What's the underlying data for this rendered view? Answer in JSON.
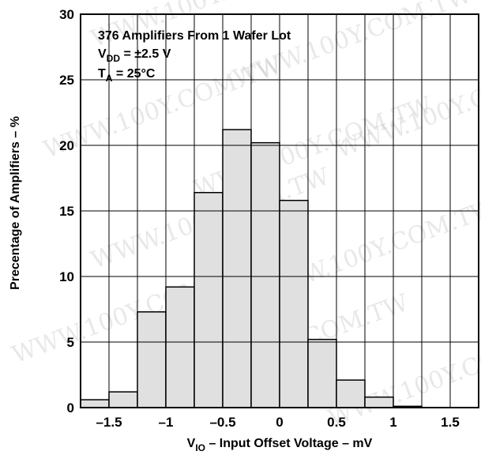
{
  "chart_data": {
    "type": "bar",
    "bin_edges": [
      -1.75,
      -1.5,
      -1.25,
      -1.0,
      -0.75,
      -0.5,
      -0.25,
      0.0,
      0.25,
      0.5,
      0.75,
      1.0,
      1.25,
      1.5,
      1.75
    ],
    "values": [
      0.6,
      1.2,
      7.3,
      9.2,
      16.4,
      21.2,
      20.2,
      15.8,
      5.2,
      2.1,
      0.8,
      0.1,
      0.0,
      0.0
    ],
    "xlim": [
      -1.75,
      1.75
    ],
    "ylim": [
      0,
      30
    ],
    "x_ticks": [
      -1.5,
      -1,
      -0.5,
      0,
      0.5,
      1,
      1.5
    ],
    "x_tick_labels": [
      "–1.5",
      "–1",
      "–0.5",
      "0",
      "0.5",
      "1",
      "1.5"
    ],
    "y_ticks": [
      0,
      5,
      10,
      15,
      20,
      25,
      30
    ],
    "y_tick_labels": [
      "0",
      "5",
      "10",
      "15",
      "20",
      "25",
      "30"
    ],
    "grid": true,
    "bar_color": "#e0e0e0",
    "xlabel": {
      "main": "V",
      "sub": "IO",
      "rest": " – Input Offset Voltage – mV"
    },
    "ylabel": "Precentage of Amplifiers – %",
    "annotation": {
      "line1": "376 Amplifiers From 1 Wafer Lot",
      "line2": {
        "main": "V",
        "sub": "DD",
        "rest": " = ±2.5 V"
      },
      "line3": {
        "main": "T",
        "sub": "A",
        "rest": " = 25°C"
      }
    },
    "watermark": "WWW.100Y.COM.TW"
  }
}
